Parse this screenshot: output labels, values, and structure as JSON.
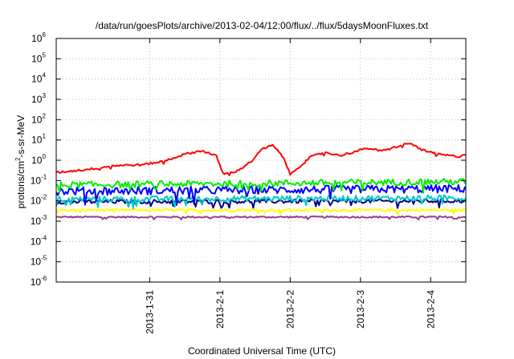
{
  "chart_data": {
    "type": "line",
    "title": "/data/run/goesPlots/archive/2013-02-04/12:00/flux/../flux/5daysMoonFluxes.txt",
    "xlabel": "Coordinated Universal Time (UTC)",
    "ylabel": {
      "pre": "protons/cm",
      "sup": "2",
      "post": "-s-sr-MeV"
    },
    "y_scale": "log",
    "ylim_exp": [
      -6,
      6
    ],
    "y_tick_labels": [
      {
        "base": "10",
        "exp": "-6"
      },
      {
        "base": "10",
        "exp": "-5"
      },
      {
        "base": "10",
        "exp": "-4"
      },
      {
        "base": "10",
        "exp": "-3"
      },
      {
        "base": "10",
        "exp": "-2"
      },
      {
        "base": "10",
        "exp": "-1"
      },
      {
        "base": "10",
        "exp": "0"
      },
      {
        "base": "10",
        "exp": "1"
      },
      {
        "base": "10",
        "exp": "2"
      },
      {
        "base": "10",
        "exp": "3"
      },
      {
        "base": "10",
        "exp": "4"
      },
      {
        "base": "10",
        "exp": "5"
      },
      {
        "base": "10",
        "exp": "6"
      }
    ],
    "xlim_days": [
      -1.33,
      4.0
    ],
    "x_ticks": [
      {
        "label": "2013-1-31",
        "day": 0
      },
      {
        "label": "2013-2-1",
        "day": 1
      },
      {
        "label": "2013-2-2",
        "day": 2
      },
      {
        "label": "2013-2-3",
        "day": 3
      },
      {
        "label": "2013-2-4",
        "day": 4
      }
    ],
    "grid": true,
    "series": [
      {
        "color": "#ff0000",
        "noise": 0.05,
        "pts": [
          [
            -1.33,
            0.25
          ],
          [
            -0.9,
            0.35
          ],
          [
            -0.5,
            0.55
          ],
          [
            -0.1,
            0.6
          ],
          [
            0.2,
            0.9
          ],
          [
            0.5,
            2.0
          ],
          [
            0.75,
            3.0
          ],
          [
            0.95,
            1.6
          ],
          [
            1.05,
            0.2
          ],
          [
            1.25,
            0.3
          ],
          [
            1.45,
            0.9
          ],
          [
            1.6,
            3.5
          ],
          [
            1.75,
            5.5
          ],
          [
            1.9,
            1.5
          ],
          [
            2.0,
            0.2
          ],
          [
            2.1,
            0.4
          ],
          [
            2.3,
            1.5
          ],
          [
            2.5,
            2.5
          ],
          [
            2.7,
            1.7
          ],
          [
            2.9,
            2.5
          ],
          [
            3.1,
            4.0
          ],
          [
            3.3,
            2.8
          ],
          [
            3.5,
            4.5
          ],
          [
            3.7,
            7.0
          ],
          [
            3.9,
            3.0
          ],
          [
            4.1,
            2.0
          ],
          [
            4.4,
            1.5
          ],
          [
            4.6,
            2.8
          ]
        ]
      },
      {
        "color": "#00ee00",
        "noise": 0.16,
        "pts": [
          [
            -1.33,
            0.06
          ],
          [
            4.6,
            0.09
          ]
        ]
      },
      {
        "color": "#0000ff",
        "noise": 0.2,
        "pts": [
          [
            -1.33,
            0.03
          ],
          [
            4.6,
            0.04
          ]
        ]
      },
      {
        "color": "#00c8c8",
        "noise": 0.14,
        "pts": [
          [
            -1.33,
            0.012
          ],
          [
            4.6,
            0.014
          ]
        ]
      },
      {
        "color": "#00008b",
        "noise": 0.1,
        "pts": [
          [
            -1.33,
            0.009
          ],
          [
            4.6,
            0.01
          ]
        ]
      },
      {
        "color": "#ffff00",
        "noise": 0.06,
        "pts": [
          [
            -1.33,
            0.0035
          ],
          [
            4.6,
            0.0035
          ]
        ]
      },
      {
        "color": "#9b3c8c",
        "noise": 0.04,
        "pts": [
          [
            -1.33,
            0.0016
          ],
          [
            4.6,
            0.0016
          ]
        ]
      }
    ]
  }
}
